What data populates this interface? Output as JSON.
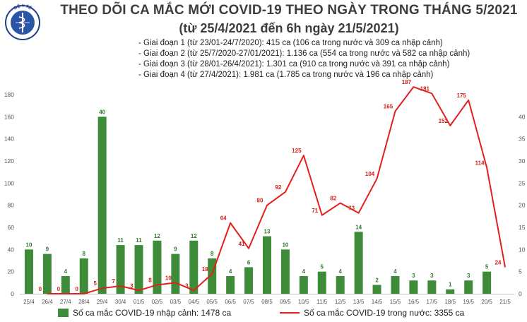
{
  "title": "THEO DÕI CA MẮC MỚI COVID-19 THEO NGÀY TRONG THÁNG 5/2021",
  "subtitle": "(từ 25/4/2021 đến 6h ngày 21/5/2021)",
  "phases": [
    "- Giai đoạn 1 (từ 23/01-24/7/2020): 415 ca (106 ca trong nước và 309 ca nhập cảnh)",
    "- Giai đoạn 2 (từ 25/7/2020-27/01/2021): 1.136 ca (554 ca trong nước và 582 ca nhập cảnh)",
    "- Giai đoạn 3 (từ 28/01-26/4/2021): 1.301 ca (910 ca trong nước và 391 ca nhập cảnh)",
    "- Giai đoạn 4 (từ 27/4/2021): 1.981 ca (1.785 ca trong nước và 196 ca nhập cảnh)"
  ],
  "logo_text": "BỘ Y TẾ",
  "colors": {
    "bar": "#3e8b3a",
    "bar_label": "#2f7a2c",
    "line": "#e3201b",
    "line_label": "#d2211a",
    "axis_text": "#555555"
  },
  "chart_data": {
    "type": "bar",
    "categories": [
      "25/4",
      "26/4",
      "27/4",
      "28/4",
      "29/4",
      "30/4",
      "01/5",
      "02/5",
      "03/5",
      "04/5",
      "05/5",
      "06/5",
      "07/5",
      "08/5",
      "09/5",
      "10/5",
      "11/5",
      "12/5",
      "13/5",
      "14/5",
      "15/5",
      "16/5",
      "17/5",
      "18/5",
      "19/5",
      "20/5",
      "21/5"
    ],
    "left_axis": {
      "ylim": [
        0,
        180
      ],
      "ticks": [
        0,
        20,
        40,
        60,
        80,
        100,
        120,
        140,
        160,
        180
      ]
    },
    "right_axis": {
      "ylim": [
        0,
        45
      ],
      "ticks": [
        0,
        5,
        10,
        15,
        20,
        25,
        30,
        35,
        40
      ]
    },
    "series": [
      {
        "name": "Số ca mắc COVID-19 nhập cảnh: 1478 ca",
        "kind": "bar",
        "axis": "right",
        "values": [
          10,
          9,
          4,
          8,
          40,
          11,
          11,
          12,
          9,
          12,
          8,
          4,
          6,
          13,
          10,
          4,
          5,
          4,
          14,
          2,
          4,
          3,
          3,
          1,
          3,
          5,
          null
        ]
      },
      {
        "name": "Số ca mắc COVID-19 trong nước: 3355 ca",
        "kind": "line",
        "axis": "left",
        "values": [
          null,
          0,
          0,
          0,
          5,
          7,
          3,
          8,
          10,
          3,
          18,
          64,
          41,
          80,
          92,
          125,
          71,
          82,
          73,
          104,
          165,
          187,
          181,
          152,
          175,
          114,
          24
        ]
      }
    ]
  }
}
